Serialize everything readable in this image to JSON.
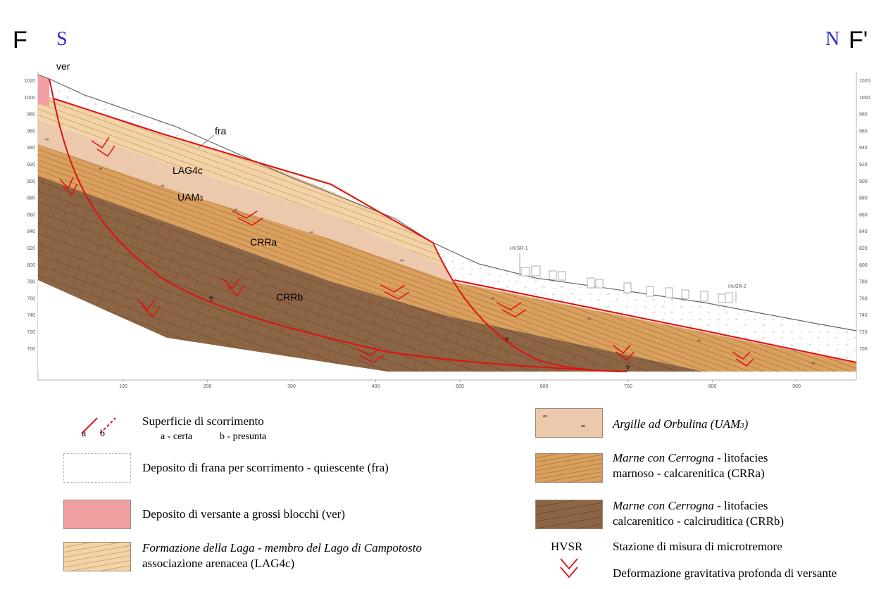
{
  "section": {
    "left_label": "F",
    "left_orient": "S",
    "right_label": "F'",
    "right_orient": "N",
    "y_ticks": [
      "1020",
      "1000",
      "980",
      "960",
      "940",
      "920",
      "900",
      "880",
      "860",
      "840",
      "820",
      "800",
      "780",
      "760",
      "740",
      "720",
      "700"
    ],
    "x_ticks": [
      "100",
      "200",
      "300",
      "400",
      "500",
      "600",
      "700",
      "800",
      "900"
    ],
    "unit_labels": {
      "ver": "ver",
      "fra": "fra",
      "lag": "LAG4c",
      "uam": "UAM",
      "uam_sub": "3",
      "crra": "CRRa",
      "crrb": "CRRb"
    },
    "stations": [
      "HVSR-1",
      "HVSR-2"
    ],
    "question_mark": "?"
  },
  "legend": {
    "slip_title": "Superficie di scorrimento",
    "slip_a": "a - certa",
    "slip_b": "b - presunta",
    "slip_key_a": "a",
    "slip_key_b": "b",
    "fra": "Deposito di frana per scorrimento - quiescente (fra)",
    "ver": "Deposito di versante a grossi blocchi (ver)",
    "lag_line1_italic": "Formazione della Laga - membro del Lago di Campotosto",
    "lag_line2": "associazione arenacea (LAG4c)",
    "uam": "Argille ad Orbulina (UAM",
    "uam_sub": "3",
    "uam_close": ")",
    "crra_italic": "Marne con Cerrogna",
    "crra_rest1": " - litofacies",
    "crra_line2": "marnoso - calcarenitica (CRRa)",
    "crrb_italic": "Marne con Cerrogna",
    "crrb_rest1": " - litofacies",
    "crrb_line2": "calcarenitico - calciruditica (CRRb)",
    "hvsr_key": "HVSR",
    "hvsr": "Stazione di misura di microtremore",
    "dgpv": "Deformazione gravitativa profonda di versante"
  },
  "colors": {
    "lag": "#f3d3a8",
    "uam": "#ecc9ad",
    "crra": "#d9a060",
    "crrb": "#8c6545",
    "ver": "#f0a0a0",
    "slip": "#e01010"
  }
}
